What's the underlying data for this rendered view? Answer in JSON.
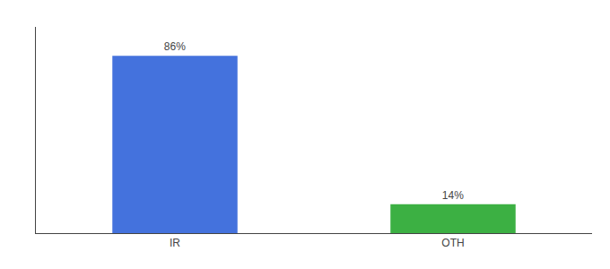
{
  "chart_data": {
    "type": "bar",
    "categories": [
      "IR",
      "OTH"
    ],
    "values": [
      86,
      14
    ],
    "colors": [
      "#4472dd",
      "#3cb043"
    ],
    "value_labels": [
      "86%",
      "14%"
    ],
    "data_labels": true,
    "ylim": [
      0,
      100
    ],
    "tick_labels": "x",
    "grid": false
  }
}
